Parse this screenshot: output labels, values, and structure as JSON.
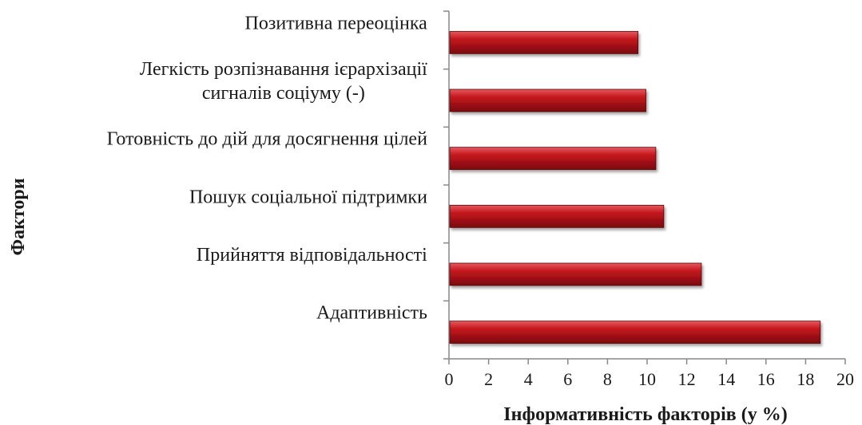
{
  "chart_data": {
    "type": "bar",
    "orientation": "horizontal",
    "categories": [
      [
        "Позитивна переоцінка"
      ],
      [
        "Легкість розпізнавання ієрархізації",
        "сигналів соціуму (-)"
      ],
      [
        "Готовність до дій для досягнення цілей"
      ],
      [
        "Пошук соціальної підтримки"
      ],
      [
        "Прийняття відповідальності"
      ],
      [
        "Адаптивність"
      ]
    ],
    "values": [
      9.5,
      9.9,
      10.4,
      10.8,
      12.7,
      18.7
    ],
    "xlabel": "Інформативність факторів (у %)",
    "ylabel": "Фактори",
    "xlim": [
      0,
      20
    ],
    "xticks": [
      0,
      2,
      4,
      6,
      8,
      10,
      12,
      14,
      16,
      18,
      20
    ],
    "grid": false,
    "legend": "none",
    "bar_color": "#b00d14"
  }
}
